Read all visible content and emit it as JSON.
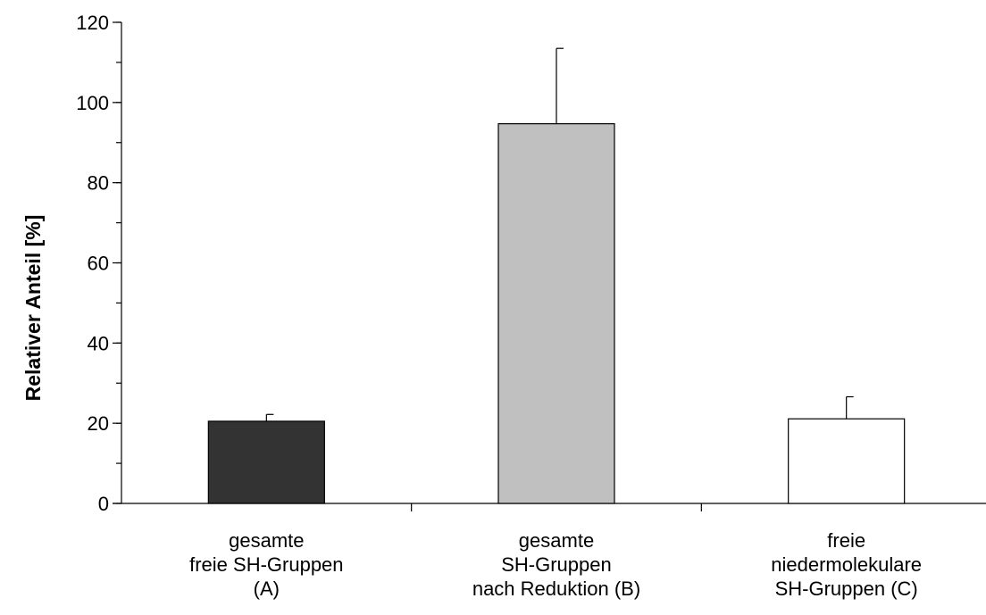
{
  "chart_data": {
    "type": "bar",
    "ylabel": "Relativer Anteil [%]",
    "xlabel": "",
    "ylim": [
      0,
      120
    ],
    "yticks": [
      0,
      20,
      40,
      60,
      80,
      100,
      120
    ],
    "ytick_labels": [
      "0",
      "20",
      "40",
      "60",
      "80",
      "100",
      "120"
    ],
    "minor_tick_step": 10,
    "grid": false,
    "legend": "none",
    "categories": [
      {
        "lines": [
          "gesamte",
          "freie SH-Gruppen",
          "(A)"
        ],
        "value": 20.5,
        "error": 1.7,
        "color": "#333333"
      },
      {
        "lines": [
          "gesamte",
          "SH-Gruppen",
          "nach Reduktion (B)"
        ],
        "value": 94.7,
        "error": 18.8,
        "color": "#c0c0c0"
      },
      {
        "lines": [
          "freie",
          "niedermolekulare",
          "SH-Gruppen (C)"
        ],
        "value": 21.1,
        "error": 5.5,
        "color": "#ffffff"
      }
    ]
  }
}
